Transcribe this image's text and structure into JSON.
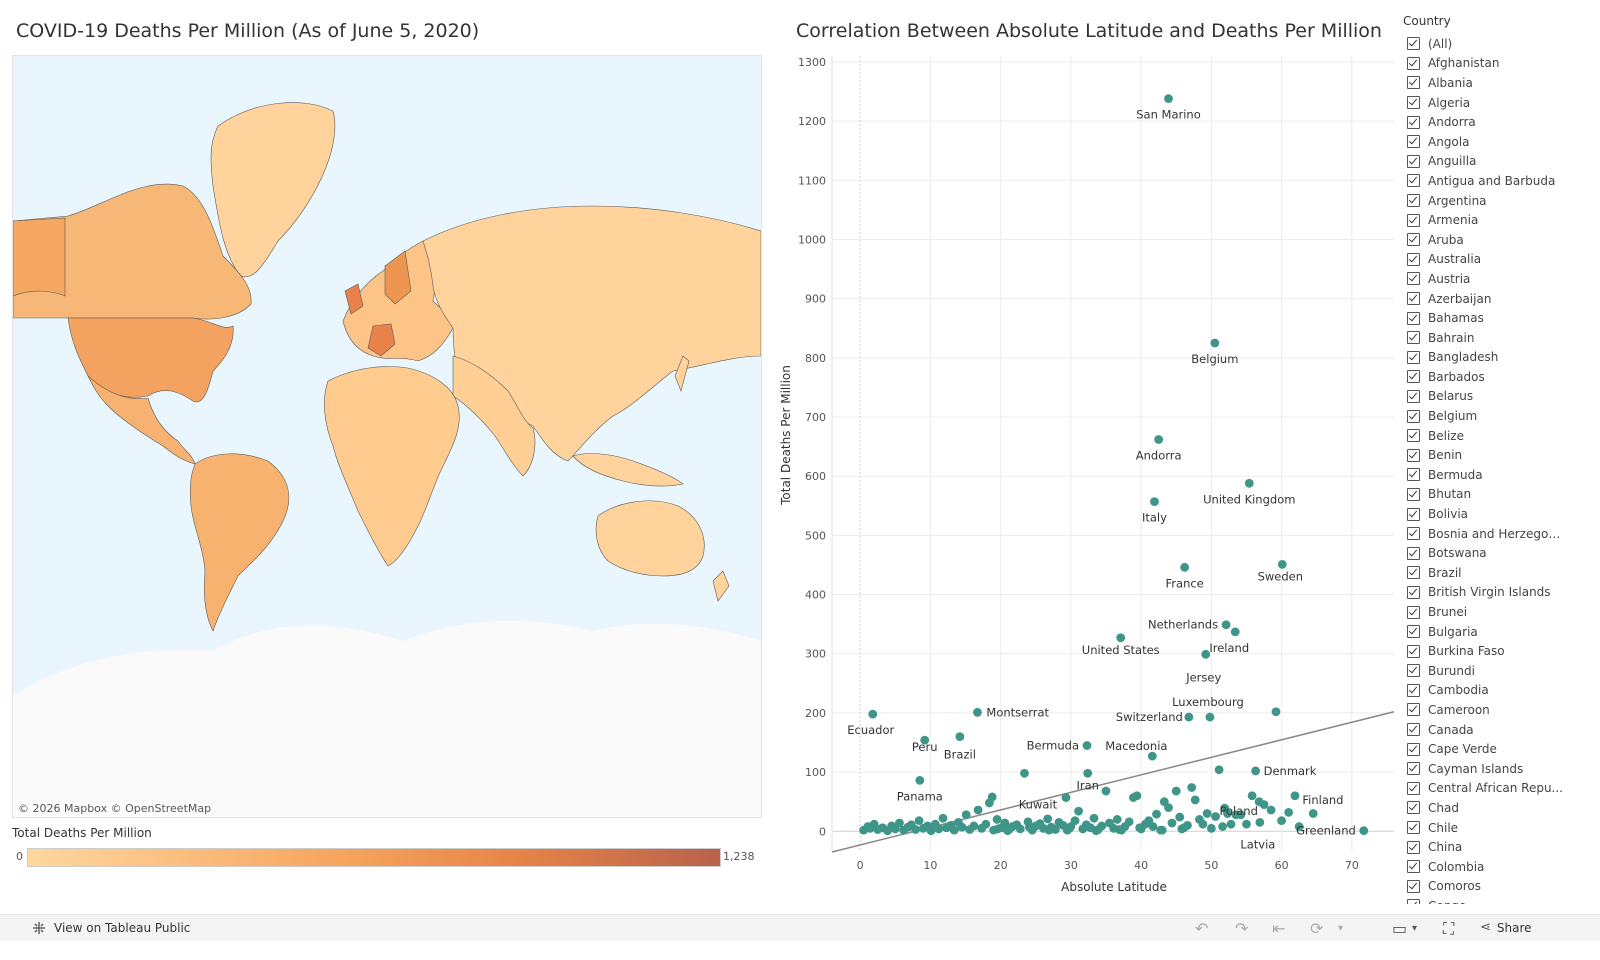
{
  "map": {
    "title": "COVID-19 Deaths Per Million (As of June 5, 2020)",
    "attribution": "© 2026 Mapbox  © OpenStreetMap",
    "legend_title": "Total Deaths Per Million",
    "legend_min": "0",
    "legend_max": "1,238",
    "ocean_color": "#eaf6fd",
    "land_low_color": "#ffd39b",
    "land_mid_color": "#f8b06a",
    "land_high_color": "#e8824a"
  },
  "scatter": {
    "title": "Correlation Between Absolute Latitude and Deaths Per Million",
    "point_color": "#3f9688"
  },
  "chart_data": {
    "type": "scatter",
    "xlabel": "Absolute Latitude",
    "ylabel": "Total Deaths Per Million",
    "xlim": [
      -4,
      76
    ],
    "ylim": [
      -35,
      1310
    ],
    "xticks": [
      0,
      10,
      20,
      30,
      40,
      50,
      60,
      70
    ],
    "yticks": [
      0,
      100,
      200,
      300,
      400,
      500,
      600,
      700,
      800,
      900,
      1000,
      1100,
      1200,
      1300
    ],
    "trend_line": {
      "x": [
        -4,
        76
      ],
      "y": [
        -35,
        202
      ]
    },
    "labeled_points": [
      {
        "label": "San Marino",
        "x": 43.9,
        "y": 1238
      },
      {
        "label": "Belgium",
        "x": 50.5,
        "y": 825
      },
      {
        "label": "Andorra",
        "x": 42.5,
        "y": 662
      },
      {
        "label": "United Kingdom",
        "x": 55.4,
        "y": 588
      },
      {
        "label": "Italy",
        "x": 41.9,
        "y": 557
      },
      {
        "label": "France",
        "x": 46.2,
        "y": 446
      },
      {
        "label": "Sweden",
        "x": 60.1,
        "y": 451
      },
      {
        "label": "Netherlands",
        "x": 52.1,
        "y": 349
      },
      {
        "label": "Ireland",
        "x": 53.4,
        "y": 337
      },
      {
        "label": "United States",
        "x": 37.1,
        "y": 327
      },
      {
        "label": "Jersey",
        "x": 49.2,
        "y": 299
      },
      {
        "label": "Ecuador",
        "x": 1.8,
        "y": 198
      },
      {
        "label": "Montserrat",
        "x": 16.7,
        "y": 201
      },
      {
        "label": "Switzerland",
        "x": 46.8,
        "y": 193
      },
      {
        "label": "Bermuda",
        "x": 32.3,
        "y": 145
      },
      {
        "label": "Luxembourg",
        "x": 49.8,
        "y": 193
      },
      {
        "label": "Peru",
        "x": 9.2,
        "y": 154
      },
      {
        "label": "Brazil",
        "x": 14.2,
        "y": 160
      },
      {
        "label": "Macedonia",
        "x": 41.6,
        "y": 127
      },
      {
        "label": "Denmark",
        "x": 56.3,
        "y": 102
      },
      {
        "label": "Iran",
        "x": 32.4,
        "y": 98
      },
      {
        "label": "Panama",
        "x": 8.5,
        "y": 86
      },
      {
        "label": "Kuwait",
        "x": 29.3,
        "y": 57
      },
      {
        "label": "Poland",
        "x": 51.9,
        "y": 39
      },
      {
        "label": "Finland",
        "x": 61.9,
        "y": 60
      },
      {
        "label": "Greenland",
        "x": 71.7,
        "y": 1
      },
      {
        "label": "Latvia",
        "x": 56.9,
        "y": 15
      }
    ],
    "other_points": [
      [
        0.5,
        2
      ],
      [
        1.1,
        8
      ],
      [
        1.4,
        5
      ],
      [
        2.0,
        12
      ],
      [
        2.5,
        3
      ],
      [
        3.2,
        6
      ],
      [
        3.9,
        1
      ],
      [
        4.5,
        9
      ],
      [
        5.0,
        4
      ],
      [
        5.6,
        14
      ],
      [
        6.2,
        2
      ],
      [
        6.8,
        7
      ],
      [
        7.3,
        11
      ],
      [
        7.9,
        3
      ],
      [
        8.4,
        18
      ],
      [
        9.0,
        5
      ],
      [
        9.6,
        9
      ],
      [
        10.1,
        1
      ],
      [
        10.7,
        12
      ],
      [
        11.2,
        4
      ],
      [
        11.8,
        22
      ],
      [
        12.3,
        6
      ],
      [
        12.9,
        10
      ],
      [
        13.4,
        2
      ],
      [
        14.0,
        15
      ],
      [
        14.5,
        7
      ],
      [
        15.1,
        28
      ],
      [
        15.6,
        3
      ],
      [
        16.2,
        9
      ],
      [
        16.8,
        36
      ],
      [
        17.3,
        5
      ],
      [
        17.9,
        12
      ],
      [
        18.4,
        48
      ],
      [
        18.8,
        58
      ],
      [
        19.0,
        2
      ],
      [
        19.5,
        20
      ],
      [
        20.1,
        6
      ],
      [
        20.6,
        14
      ],
      [
        21.2,
        3
      ],
      [
        21.7,
        8
      ],
      [
        22.3,
        11
      ],
      [
        22.8,
        4
      ],
      [
        23.4,
        98
      ],
      [
        23.9,
        16
      ],
      [
        24.5,
        2
      ],
      [
        25.0,
        9
      ],
      [
        25.6,
        13
      ],
      [
        26.1,
        5
      ],
      [
        26.7,
        21
      ],
      [
        27.2,
        7
      ],
      [
        27.8,
        3
      ],
      [
        28.3,
        15
      ],
      [
        28.9,
        10
      ],
      [
        29.5,
        2
      ],
      [
        30.0,
        8
      ],
      [
        30.6,
        18
      ],
      [
        31.1,
        34
      ],
      [
        31.7,
        4
      ],
      [
        32.2,
        11
      ],
      [
        32.8,
        6
      ],
      [
        33.3,
        22
      ],
      [
        33.9,
        3
      ],
      [
        34.4,
        9
      ],
      [
        35.0,
        68
      ],
      [
        35.5,
        14
      ],
      [
        36.1,
        5
      ],
      [
        36.6,
        20
      ],
      [
        37.2,
        2
      ],
      [
        37.7,
        8
      ],
      [
        38.3,
        16
      ],
      [
        38.9,
        57
      ],
      [
        39.4,
        60
      ],
      [
        40.0,
        4
      ],
      [
        40.6,
        12
      ],
      [
        41.1,
        18
      ],
      [
        41.7,
        8
      ],
      [
        42.2,
        29
      ],
      [
        42.8,
        2
      ],
      [
        43.3,
        50
      ],
      [
        43.9,
        40
      ],
      [
        44.4,
        14
      ],
      [
        45.0,
        68
      ],
      [
        45.5,
        24
      ],
      [
        46.1,
        6
      ],
      [
        46.6,
        10
      ],
      [
        47.2,
        74
      ],
      [
        47.7,
        53
      ],
      [
        48.3,
        20
      ],
      [
        48.8,
        12
      ],
      [
        49.4,
        30
      ],
      [
        50.0,
        5
      ],
      [
        50.6,
        25
      ],
      [
        51.1,
        104
      ],
      [
        51.6,
        8
      ],
      [
        52.3,
        30
      ],
      [
        52.8,
        12
      ],
      [
        53.5,
        28
      ],
      [
        54.2,
        28
      ],
      [
        55.0,
        12
      ],
      [
        55.8,
        60
      ],
      [
        56.8,
        50
      ],
      [
        57.5,
        45
      ],
      [
        58.5,
        36
      ],
      [
        59.2,
        202
      ],
      [
        60.0,
        18
      ],
      [
        61.0,
        32
      ],
      [
        62.5,
        8
      ],
      [
        64.5,
        30
      ],
      [
        19.6,
        4
      ],
      [
        21.0,
        1
      ],
      [
        24.1,
        7
      ],
      [
        26.9,
        2
      ],
      [
        29.8,
        5
      ],
      [
        33.6,
        1
      ],
      [
        36.9,
        3
      ],
      [
        39.8,
        6
      ],
      [
        43.0,
        2
      ],
      [
        45.8,
        4
      ]
    ]
  },
  "filter": {
    "title": "Country",
    "items": [
      "(All)",
      "Afghanistan",
      "Albania",
      "Algeria",
      "Andorra",
      "Angola",
      "Anguilla",
      "Antigua and Barbuda",
      "Argentina",
      "Armenia",
      "Aruba",
      "Australia",
      "Austria",
      "Azerbaijan",
      "Bahamas",
      "Bahrain",
      "Bangladesh",
      "Barbados",
      "Belarus",
      "Belgium",
      "Belize",
      "Benin",
      "Bermuda",
      "Bhutan",
      "Bolivia",
      "Bosnia and Herzegov...",
      "Botswana",
      "Brazil",
      "British Virgin Islands",
      "Brunei",
      "Bulgaria",
      "Burkina Faso",
      "Burundi",
      "Cambodia",
      "Cameroon",
      "Canada",
      "Cape Verde",
      "Cayman Islands",
      "Central African Repu...",
      "Chad",
      "Chile",
      "China",
      "Colombia",
      "Comoros",
      "Congo"
    ]
  },
  "footer": {
    "view_public": "View on Tableau Public",
    "share": "Share"
  }
}
